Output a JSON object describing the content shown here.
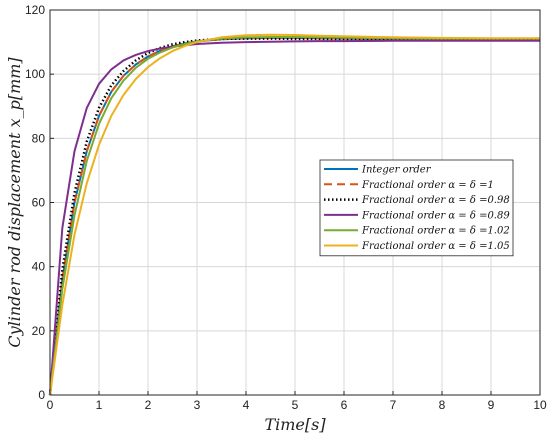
{
  "chart_data": {
    "type": "line",
    "title": "",
    "xlabel": "Time[s]",
    "ylabel": "Cylinder rod displacement x_p[mm]",
    "xlim": [
      0,
      10
    ],
    "ylim": [
      0,
      120
    ],
    "x_ticks": [
      "0",
      "1",
      "2",
      "3",
      "4",
      "5",
      "6",
      "7",
      "8",
      "9",
      "10"
    ],
    "y_ticks": [
      "0",
      "20",
      "40",
      "60",
      "80",
      "100",
      "120"
    ],
    "grid": true,
    "legend_position": "right-middle",
    "x": [
      0,
      0.25,
      0.5,
      0.75,
      1,
      1.25,
      1.5,
      1.75,
      2,
      2.25,
      2.5,
      2.75,
      3,
      3.5,
      4,
      4.5,
      5,
      5.5,
      6,
      7,
      8,
      9,
      10
    ],
    "series": [
      {
        "name": "Integer order",
        "color": "#0072BD",
        "style": "solid",
        "values": [
          0,
          36,
          60,
          76,
          87,
          94.5,
          99.5,
          103,
          105.5,
          107.3,
          108.7,
          109.6,
          110.2,
          110.9,
          111.2,
          111.3,
          111.3,
          111.2,
          111.1,
          111,
          111,
          111,
          111
        ]
      },
      {
        "name": "Fractional order α = δ =1",
        "color": "#D95319",
        "style": "dashed",
        "values": [
          0,
          36,
          60,
          76,
          87,
          94.5,
          99.5,
          103,
          105.5,
          107.3,
          108.7,
          109.6,
          110.2,
          110.9,
          111.2,
          111.3,
          111.3,
          111.2,
          111.1,
          111,
          111,
          111,
          111
        ]
      },
      {
        "name": "Fractional order α = δ =0.98",
        "color": "#000000",
        "style": "dotted",
        "values": [
          0,
          39,
          63,
          79,
          89.5,
          96.5,
          101,
          104.3,
          106.6,
          108.2,
          109.3,
          110,
          110.5,
          111,
          111.1,
          111.1,
          111,
          111,
          110.9,
          110.9,
          110.9,
          110.9,
          110.9
        ]
      },
      {
        "name": "Fractional order α = δ =0.89",
        "color": "#7E2F8E",
        "style": "solid",
        "values": [
          0,
          52,
          76,
          89.5,
          97,
          101.5,
          104.3,
          106,
          107.2,
          108,
          108.6,
          109,
          109.4,
          109.8,
          110,
          110.1,
          110.2,
          110.3,
          110.3,
          110.4,
          110.4,
          110.4,
          110.4
        ]
      },
      {
        "name": "Fractional order α = δ =1.02",
        "color": "#77AC30",
        "style": "solid",
        "values": [
          0,
          33,
          56,
          73,
          84.5,
          92.5,
          98,
          102,
          104.8,
          106.8,
          108.3,
          109.4,
          110.2,
          111.1,
          111.5,
          111.6,
          111.6,
          111.5,
          111.4,
          111.2,
          111.1,
          111.1,
          111.1
        ]
      },
      {
        "name": "Fractional order α = δ =1.05",
        "color": "#EDB120",
        "style": "solid",
        "values": [
          0,
          28,
          50,
          66,
          78,
          87,
          93.5,
          98.5,
          102.2,
          105,
          107.2,
          108.8,
          110,
          111.5,
          112.1,
          112.3,
          112.2,
          112,
          111.8,
          111.5,
          111.3,
          111.2,
          111.2
        ]
      }
    ]
  }
}
